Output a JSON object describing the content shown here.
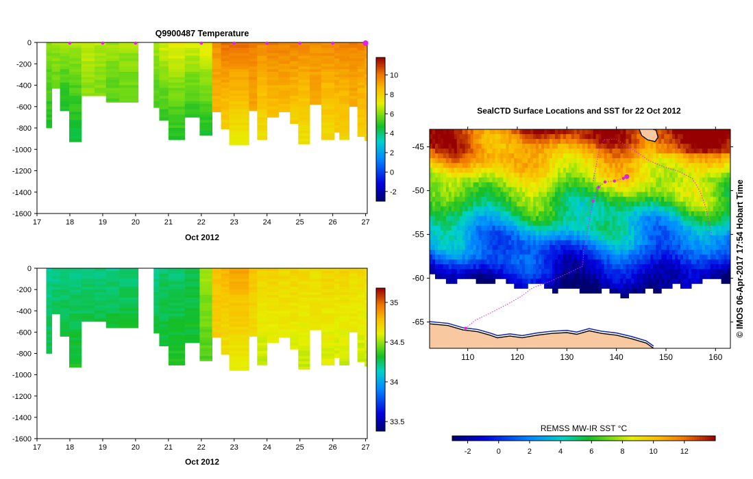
{
  "chart_data": [
    {
      "type": "heatmap",
      "title": "Q9900487  Temperature",
      "xlabel": "Oct 2012",
      "ylabel": "",
      "x_ticks": [
        "17",
        "18",
        "19",
        "20",
        "21",
        "22",
        "23",
        "24",
        "25",
        "26",
        "27"
      ],
      "xlim": [
        17,
        27.05
      ],
      "y_ticks": [
        "0",
        "-200",
        "-400",
        "-600",
        "-800",
        "-1000",
        "-1200",
        "-1400",
        "-1600"
      ],
      "ylim": [
        -1600,
        0
      ],
      "profile_markers_x": [
        18,
        19,
        20,
        22,
        23,
        24,
        25,
        26,
        27
      ],
      "colorbar": {
        "ticks": [
          "-2",
          "0",
          "2",
          "4",
          "6",
          "8",
          "10"
        ],
        "range": [
          -3,
          11.8
        ]
      },
      "value_range": [
        -3,
        11.8
      ],
      "profiles": [
        {
          "x0": 17.28,
          "x1": 17.45,
          "depth": 800,
          "top": 6.2,
          "bottom": 4.8
        },
        {
          "x0": 17.45,
          "x1": 17.7,
          "depth": 430,
          "top": 6.3,
          "bottom": 5.6
        },
        {
          "x0": 17.7,
          "x1": 17.98,
          "depth": 640,
          "top": 6.4,
          "bottom": 4.7
        },
        {
          "x0": 17.98,
          "x1": 18.35,
          "depth": 930,
          "top": 6.5,
          "bottom": 4.4
        },
        {
          "x0": 18.35,
          "x1": 18.75,
          "depth": 500,
          "top": 6.8,
          "bottom": 6.0
        },
        {
          "x0": 18.75,
          "x1": 19.1,
          "depth": 500,
          "top": 6.6,
          "bottom": 5.9
        },
        {
          "x0": 19.1,
          "x1": 19.5,
          "depth": 560,
          "top": 6.4,
          "bottom": 5.4
        },
        {
          "x0": 19.5,
          "x1": 20.08,
          "depth": 560,
          "top": 6.5,
          "bottom": 5.5
        },
        {
          "x0": 20.55,
          "x1": 20.72,
          "depth": 610,
          "top": 6.6,
          "bottom": 5.2
        },
        {
          "x0": 20.72,
          "x1": 21.0,
          "depth": 730,
          "top": 7.0,
          "bottom": 5.0
        },
        {
          "x0": 21.0,
          "x1": 21.5,
          "depth": 910,
          "top": 7.3,
          "bottom": 4.8
        },
        {
          "x0": 21.5,
          "x1": 21.95,
          "depth": 700,
          "top": 7.0,
          "bottom": 5.0
        },
        {
          "x0": 21.95,
          "x1": 22.33,
          "depth": 870,
          "top": 7.5,
          "bottom": 4.6
        },
        {
          "x0": 22.33,
          "x1": 22.6,
          "depth": 650,
          "top": 9.6,
          "bottom": 8.6
        },
        {
          "x0": 22.6,
          "x1": 22.85,
          "depth": 810,
          "top": 10.3,
          "bottom": 8.0
        },
        {
          "x0": 22.85,
          "x1": 23.45,
          "depth": 960,
          "top": 10.3,
          "bottom": 7.2
        },
        {
          "x0": 23.45,
          "x1": 23.7,
          "depth": 640,
          "top": 9.9,
          "bottom": 9.0
        },
        {
          "x0": 23.7,
          "x1": 24.0,
          "depth": 910,
          "top": 9.8,
          "bottom": 7.6
        },
        {
          "x0": 24.0,
          "x1": 24.35,
          "depth": 700,
          "top": 10.0,
          "bottom": 8.4
        },
        {
          "x0": 24.35,
          "x1": 24.7,
          "depth": 650,
          "top": 9.9,
          "bottom": 8.5
        },
        {
          "x0": 24.7,
          "x1": 24.95,
          "depth": 760,
          "top": 10.0,
          "bottom": 8.0
        },
        {
          "x0": 24.95,
          "x1": 25.3,
          "depth": 950,
          "top": 9.8,
          "bottom": 7.5
        },
        {
          "x0": 25.3,
          "x1": 25.65,
          "depth": 580,
          "top": 9.6,
          "bottom": 8.8
        },
        {
          "x0": 25.65,
          "x1": 26.05,
          "depth": 910,
          "top": 9.8,
          "bottom": 7.7
        },
        {
          "x0": 26.05,
          "x1": 26.2,
          "depth": 840,
          "top": 9.8,
          "bottom": 8.1
        },
        {
          "x0": 26.2,
          "x1": 26.5,
          "depth": 910,
          "top": 9.9,
          "bottom": 7.9
        },
        {
          "x0": 26.5,
          "x1": 26.75,
          "depth": 600,
          "top": 9.9,
          "bottom": 8.8
        },
        {
          "x0": 26.75,
          "x1": 26.97,
          "depth": 880,
          "top": 9.9,
          "bottom": 8.0
        },
        {
          "x0": 26.97,
          "x1": 27.05,
          "depth": 920,
          "top": 9.6,
          "bottom": 8.0
        }
      ]
    },
    {
      "type": "heatmap",
      "title": "",
      "xlabel": "Oct 2012",
      "ylabel": "",
      "x_ticks": [
        "17",
        "18",
        "19",
        "20",
        "21",
        "22",
        "23",
        "24",
        "25",
        "26",
        "27"
      ],
      "xlim": [
        17,
        27.05
      ],
      "y_ticks": [
        "0",
        "-200",
        "-400",
        "-600",
        "-800",
        "-1000",
        "-1200",
        "-1400",
        "-1600"
      ],
      "ylim": [
        -1600,
        0
      ],
      "colorbar": {
        "ticks": [
          "33.5",
          "34",
          "34.5",
          "35"
        ],
        "range": [
          33.38,
          35.18
        ]
      },
      "value_range": [
        33.38,
        35.18
      ],
      "profiles": [
        {
          "x0": 17.28,
          "x1": 17.45,
          "depth": 800,
          "top": 34.18,
          "bottom": 34.28
        },
        {
          "x0": 17.45,
          "x1": 17.7,
          "depth": 430,
          "top": 34.2,
          "bottom": 34.26
        },
        {
          "x0": 17.7,
          "x1": 17.98,
          "depth": 640,
          "top": 34.2,
          "bottom": 34.3
        },
        {
          "x0": 17.98,
          "x1": 18.35,
          "depth": 930,
          "top": 34.2,
          "bottom": 34.32
        },
        {
          "x0": 18.35,
          "x1": 18.75,
          "depth": 500,
          "top": 34.22,
          "bottom": 34.28
        },
        {
          "x0": 18.75,
          "x1": 19.1,
          "depth": 500,
          "top": 34.22,
          "bottom": 34.28
        },
        {
          "x0": 19.1,
          "x1": 19.5,
          "depth": 560,
          "top": 34.2,
          "bottom": 34.3
        },
        {
          "x0": 19.5,
          "x1": 20.08,
          "depth": 560,
          "top": 34.22,
          "bottom": 34.3
        },
        {
          "x0": 20.55,
          "x1": 20.72,
          "depth": 610,
          "top": 34.2,
          "bottom": 34.3
        },
        {
          "x0": 20.72,
          "x1": 21.0,
          "depth": 730,
          "top": 34.24,
          "bottom": 34.3
        },
        {
          "x0": 21.0,
          "x1": 21.5,
          "depth": 910,
          "top": 34.22,
          "bottom": 34.34
        },
        {
          "x0": 21.5,
          "x1": 21.95,
          "depth": 700,
          "top": 34.26,
          "bottom": 34.32
        },
        {
          "x0": 21.95,
          "x1": 22.33,
          "depth": 870,
          "top": 34.52,
          "bottom": 34.4
        },
        {
          "x0": 22.33,
          "x1": 22.6,
          "depth": 650,
          "top": 34.78,
          "bottom": 34.72
        },
        {
          "x0": 22.6,
          "x1": 22.85,
          "depth": 810,
          "top": 34.82,
          "bottom": 34.66
        },
        {
          "x0": 22.85,
          "x1": 23.45,
          "depth": 960,
          "top": 34.86,
          "bottom": 34.62
        },
        {
          "x0": 23.45,
          "x1": 23.7,
          "depth": 640,
          "top": 34.76,
          "bottom": 34.68
        },
        {
          "x0": 23.7,
          "x1": 24.0,
          "depth": 910,
          "top": 34.72,
          "bottom": 34.56
        },
        {
          "x0": 24.0,
          "x1": 24.35,
          "depth": 700,
          "top": 34.74,
          "bottom": 34.6
        },
        {
          "x0": 24.35,
          "x1": 24.7,
          "depth": 650,
          "top": 34.7,
          "bottom": 34.62
        },
        {
          "x0": 24.7,
          "x1": 24.95,
          "depth": 760,
          "top": 34.72,
          "bottom": 34.6
        },
        {
          "x0": 24.95,
          "x1": 25.3,
          "depth": 950,
          "top": 34.7,
          "bottom": 34.56
        },
        {
          "x0": 25.3,
          "x1": 25.65,
          "depth": 580,
          "top": 34.68,
          "bottom": 34.62
        },
        {
          "x0": 25.65,
          "x1": 26.05,
          "depth": 910,
          "top": 34.72,
          "bottom": 34.58
        },
        {
          "x0": 26.05,
          "x1": 26.2,
          "depth": 840,
          "top": 34.7,
          "bottom": 34.58
        },
        {
          "x0": 26.2,
          "x1": 26.5,
          "depth": 910,
          "top": 34.72,
          "bottom": 34.56
        },
        {
          "x0": 26.5,
          "x1": 26.75,
          "depth": 600,
          "top": 34.68,
          "bottom": 34.62
        },
        {
          "x0": 26.75,
          "x1": 26.97,
          "depth": 880,
          "top": 34.7,
          "bottom": 34.56
        },
        {
          "x0": 26.97,
          "x1": 27.05,
          "depth": 920,
          "top": 34.68,
          "bottom": 34.56
        }
      ]
    },
    {
      "type": "heatmap",
      "title": "SealCTD Surface Locations and SST for 22 Oct 2012",
      "xlabel": "",
      "ylabel": "",
      "x_ticks": [
        "110",
        "120",
        "130",
        "140",
        "150",
        "160"
      ],
      "xlim": [
        102.3,
        163
      ],
      "y_ticks": [
        "-45",
        "-50",
        "-55",
        "-60",
        "-65"
      ],
      "ylim": [
        -68,
        -43
      ],
      "value_range": [
        -3,
        14
      ],
      "colorbar": {
        "label": "REMSS MW-IR SST °C",
        "ticks": [
          "-2",
          "0",
          "2",
          "4",
          "6",
          "8",
          "10",
          "12"
        ],
        "range": [
          -3,
          14
        ]
      },
      "seal_track": {
        "lon": [
          109.6,
          111.5,
          114.8,
          117.9,
          120.7,
          123.1,
          126.4,
          129.6,
          133.2,
          133.4,
          134.0,
          134.6,
          135.3,
          136.4,
          137.7,
          139.6,
          141.4,
          142.1
        ],
        "lat": [
          -65.7,
          -64.8,
          -63.9,
          -63.0,
          -62.1,
          -61.1,
          -60.4,
          -59.6,
          -58.6,
          -56.9,
          -55.1,
          -53.2,
          -51.2,
          -49.6,
          -49.0,
          -48.9,
          -48.6,
          -48.4
        ]
      },
      "float_track": {
        "lon": [
          135.3,
          136.5,
          137.4,
          139.8,
          143.6,
          146.7,
          149.6,
          152.6,
          155.3,
          156.9,
          158.2,
          158.7,
          159.2,
          159.0
        ],
        "lat": [
          -48.9,
          -45.4,
          -44.2,
          -44.1,
          -45.4,
          -46.6,
          -47.3,
          -47.8,
          -48.6,
          -50.1,
          -52.2,
          -53.8,
          -54.8,
          -55.5
        ]
      },
      "antarctic_coast": {
        "lon": [
          102.3,
          106.0,
          109.0,
          112.0,
          114.5,
          116.0,
          118.5,
          121.0,
          124.0,
          127.0,
          130.0,
          132.0,
          134.5,
          137.0,
          140.0,
          143.0,
          146.0,
          147.5
        ],
        "lat": [
          -65.2,
          -65.4,
          -65.9,
          -66.1,
          -66.5,
          -66.8,
          -66.6,
          -66.8,
          -66.5,
          -66.3,
          -66.2,
          -66.4,
          -66.0,
          -66.3,
          -66.5,
          -66.9,
          -67.4,
          -68.0
        ]
      },
      "tasmania": {
        "lon": [
          144.6,
          145.4,
          146.8,
          148.0,
          148.4,
          147.8,
          146.3,
          145.1,
          144.6
        ],
        "lat": [
          -43.0,
          -42.9,
          -42.9,
          -43.1,
          -43.9,
          -44.4,
          -44.2,
          -43.7,
          -43.0
        ]
      }
    }
  ],
  "credit": "©  IMOS 06-Apr-2017 17:54 Hobart Time"
}
